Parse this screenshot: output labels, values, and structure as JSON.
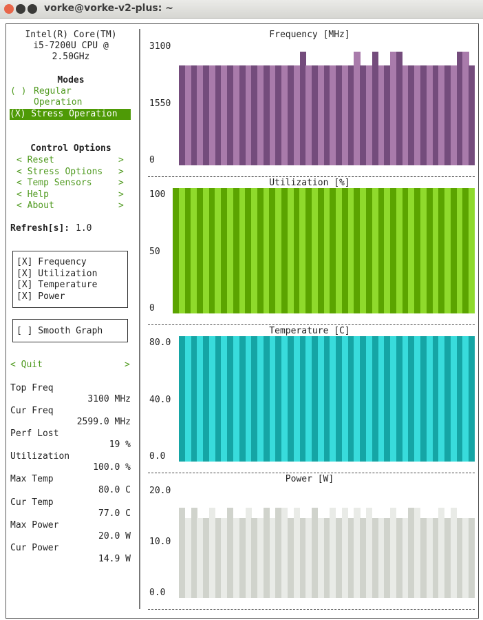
{
  "window": {
    "title": "vorke@vorke-v2-plus: ~"
  },
  "cpu": {
    "line1": "Intel(R) Core(TM)",
    "line2": "i5-7200U CPU @",
    "line3": "2.50GHz"
  },
  "modes": {
    "heading": "Modes",
    "regular_mark": "( )",
    "regular_1": "Regular",
    "regular_2": "Operation",
    "stress": "(X) Stress Operation"
  },
  "control": {
    "heading": "Control Options",
    "items": [
      {
        "left": "< Reset",
        "right": ">"
      },
      {
        "left": "< Stress Options",
        "right": ">"
      },
      {
        "left": "< Temp Sensors",
        "right": ">"
      },
      {
        "left": "< Help",
        "right": ">"
      },
      {
        "left": "< About",
        "right": ">"
      }
    ]
  },
  "refresh": {
    "label": "Refresh[s]:",
    "value": "1.0"
  },
  "graphs_toggle": [
    "[X] Frequency",
    "[X] Utilization",
    "[X] Temperature",
    "[X] Power"
  ],
  "smooth": "[ ] Smooth Graph",
  "quit": {
    "left": "< Quit",
    "right": ">"
  },
  "stats": [
    {
      "label": "Top Freq",
      "value": "3100 MHz"
    },
    {
      "label": "Cur Freq",
      "value": "2599.0 MHz"
    },
    {
      "label": "Perf Lost",
      "value": "19 %"
    },
    {
      "label": "Utilization",
      "value": "100.0 %"
    },
    {
      "label": "Max Temp",
      "value": "80.0 C"
    },
    {
      "label": "Cur Temp",
      "value": "77.0 C"
    },
    {
      "label": "Max Power",
      "value": "20.0 W"
    },
    {
      "label": "Cur Power",
      "value": "14.9 W"
    }
  ],
  "chart_data": [
    {
      "type": "bar",
      "title": "Frequency [MHz]",
      "ylim": [
        0,
        3100
      ],
      "yticks": [
        "3100",
        "1550",
        "0"
      ],
      "colors": [
        "#744c7c",
        "#a97bab"
      ],
      "base": 2600,
      "peak": 2950,
      "peak_idx": [
        20,
        29,
        32,
        35,
        36,
        46,
        47
      ],
      "count": 49
    },
    {
      "type": "bar",
      "title": "Utilization [%]",
      "ylim": [
        0,
        100
      ],
      "yticks": [
        "100",
        "50",
        "0"
      ],
      "colors": [
        "#5ba400",
        "#8fda2c"
      ],
      "base": 100,
      "peak": 100,
      "peak_idx": [],
      "count": 50
    },
    {
      "type": "bar",
      "title": "Temperature [C]",
      "ylim": [
        0,
        80
      ],
      "yticks": [
        "80.0",
        "40.0",
        "0.0"
      ],
      "colors": [
        "#15a5a5",
        "#38dcdc"
      ],
      "base": 80,
      "peak": 80,
      "peak_idx": [],
      "count": 49
    },
    {
      "type": "bar",
      "title": "Power [W]",
      "ylim": [
        0,
        20
      ],
      "yticks": [
        "20.0",
        "10.0",
        "0.0"
      ],
      "colors": [
        "#d0d3cc",
        "#e9ebe7"
      ],
      "base": 14.9,
      "peak": 16.8,
      "peak_idx": [
        0,
        2,
        5,
        8,
        11,
        14,
        16,
        17,
        19,
        22,
        25,
        27,
        29,
        31,
        35,
        38,
        39,
        43,
        45
      ],
      "count": 49
    }
  ]
}
